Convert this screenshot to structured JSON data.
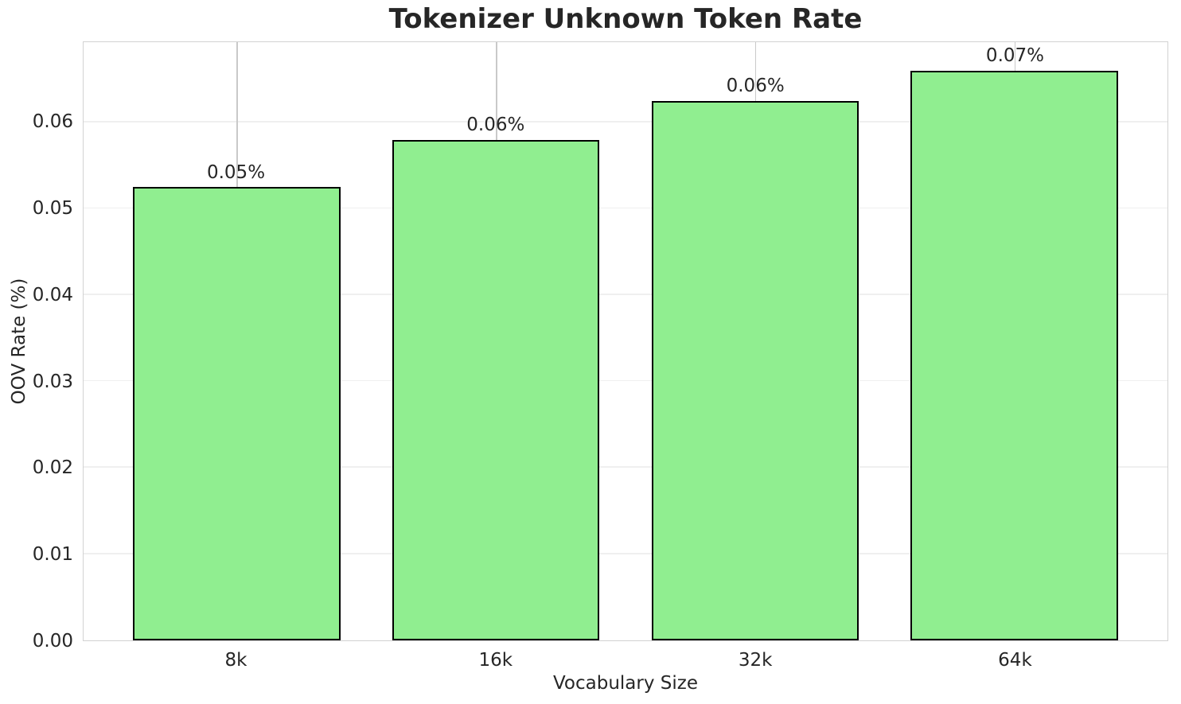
{
  "chart_data": {
    "type": "bar",
    "title": "Tokenizer Unknown Token Rate",
    "xlabel": "Vocabulary Size",
    "ylabel": "OOV Rate (%)",
    "categories": [
      "8k",
      "16k",
      "32k",
      "64k"
    ],
    "values": [
      0.0525,
      0.058,
      0.0625,
      0.066
    ],
    "bar_labels": [
      "0.05%",
      "0.06%",
      "0.06%",
      "0.07%"
    ],
    "ytick_labels": [
      "0.00",
      "0.01",
      "0.02",
      "0.03",
      "0.04",
      "0.05",
      "0.06"
    ],
    "yticks": [
      0.0,
      0.01,
      0.02,
      0.03,
      0.04,
      0.05,
      0.06
    ],
    "ylim": [
      0,
      0.0693
    ],
    "grid": true,
    "legend_position": "none",
    "colors": {
      "bar_fill": "#90EE90",
      "bar_edge": "#000000",
      "grid_horizontal": "#efefef",
      "grid_vertical": "#c9c9c9",
      "spine": "#d2d2d2",
      "text": "#262626",
      "background": "#ffffff"
    }
  }
}
